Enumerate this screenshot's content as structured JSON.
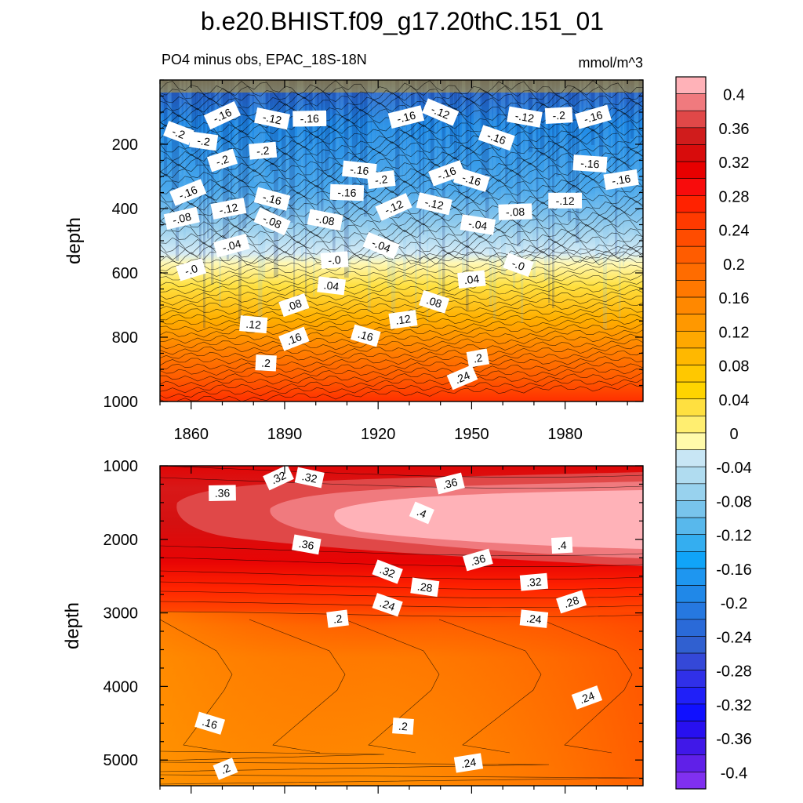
{
  "chart_data": {
    "type": "heatmap",
    "title": "b.e20.BHIST.f09_g17.20thC.151_01",
    "subtitle_left": "PO4 minus obs, EPAC_18S-18N",
    "subtitle_right": "mmol/m^3",
    "xlabel": "",
    "ylabel": "depth",
    "x_range": [
      1850,
      2005
    ],
    "x_ticks": [
      1860,
      1890,
      1920,
      1950,
      1980
    ],
    "x_tick_labels": [
      "1860",
      "1890",
      "1920",
      "1950",
      "1980"
    ],
    "panels": [
      {
        "name": "upper",
        "ylim": [
          0,
          1000
        ],
        "y_ticks": [
          200,
          400,
          600,
          800,
          1000
        ],
        "y_tick_labels": [
          "200",
          "400",
          "600",
          "800",
          "1000"
        ],
        "contour_labels": [
          {
            "text": "-.16",
            "x": 1870,
            "y": 110
          },
          {
            "text": "-.12",
            "x": 1886,
            "y": 120
          },
          {
            "text": "-.16",
            "x": 1898,
            "y": 120
          },
          {
            "text": "-.16",
            "x": 1929,
            "y": 115
          },
          {
            "text": "-.12",
            "x": 1940,
            "y": 100
          },
          {
            "text": "-.12",
            "x": 1967,
            "y": 115
          },
          {
            "text": "-.2",
            "x": 1978,
            "y": 110
          },
          {
            "text": "-.16",
            "x": 1989,
            "y": 115
          },
          {
            "text": "-.2",
            "x": 1856,
            "y": 165
          },
          {
            "text": "-.2",
            "x": 1864,
            "y": 190
          },
          {
            "text": "-.2",
            "x": 1883,
            "y": 220
          },
          {
            "text": "-.2",
            "x": 1870,
            "y": 250
          },
          {
            "text": "-.16",
            "x": 1958,
            "y": 180
          },
          {
            "text": "-.16",
            "x": 1914,
            "y": 280
          },
          {
            "text": "-.2",
            "x": 1921,
            "y": 310
          },
          {
            "text": "-.16",
            "x": 1942,
            "y": 290
          },
          {
            "text": "-.16",
            "x": 1950,
            "y": 310
          },
          {
            "text": "-.16",
            "x": 1988,
            "y": 260
          },
          {
            "text": "-.16",
            "x": 1998,
            "y": 310
          },
          {
            "text": "-.16",
            "x": 1859,
            "y": 350
          },
          {
            "text": "-.16",
            "x": 1886,
            "y": 370
          },
          {
            "text": "-.16",
            "x": 1910,
            "y": 350
          },
          {
            "text": "-.12",
            "x": 1872,
            "y": 400
          },
          {
            "text": "-.12",
            "x": 1925,
            "y": 395
          },
          {
            "text": "-.12",
            "x": 1938,
            "y": 385
          },
          {
            "text": "-.12",
            "x": 1980,
            "y": 375
          },
          {
            "text": "-.08",
            "x": 1857,
            "y": 430
          },
          {
            "text": "-.08",
            "x": 1886,
            "y": 440
          },
          {
            "text": "-.08",
            "x": 1903,
            "y": 435
          },
          {
            "text": "-.08",
            "x": 1964,
            "y": 410
          },
          {
            "text": "-.04",
            "x": 1873,
            "y": 515
          },
          {
            "text": "-.04",
            "x": 1921,
            "y": 515
          },
          {
            "text": "-.04",
            "x": 1952,
            "y": 450
          },
          {
            "text": "-.0",
            "x": 1906,
            "y": 560
          },
          {
            "text": "-.0",
            "x": 1860,
            "y": 590
          },
          {
            "text": "-.0",
            "x": 1965,
            "y": 575
          },
          {
            "text": ".04",
            "x": 1905,
            "y": 640
          },
          {
            "text": ".04",
            "x": 1950,
            "y": 620
          },
          {
            "text": ".08",
            "x": 1893,
            "y": 700
          },
          {
            "text": ".08",
            "x": 1938,
            "y": 690
          },
          {
            "text": ".12",
            "x": 1880,
            "y": 760
          },
          {
            "text": ".12",
            "x": 1928,
            "y": 745
          },
          {
            "text": ".16",
            "x": 1893,
            "y": 805
          },
          {
            "text": ".16",
            "x": 1916,
            "y": 795
          },
          {
            "text": ".2",
            "x": 1884,
            "y": 880
          },
          {
            "text": ".2",
            "x": 1952,
            "y": 865
          },
          {
            "text": ".24",
            "x": 1947,
            "y": 925
          }
        ]
      },
      {
        "name": "lower",
        "ylim": [
          1000,
          5350
        ],
        "y_ticks": [
          1000,
          2000,
          3000,
          4000,
          5000
        ],
        "y_tick_labels": [
          "1000",
          "2000",
          "3000",
          "4000",
          "5000"
        ],
        "contour_labels": [
          {
            "text": ".32",
            "x": 1888,
            "y": 1160
          },
          {
            "text": ".32",
            "x": 1898,
            "y": 1160
          },
          {
            "text": ".36",
            "x": 1870,
            "y": 1370
          },
          {
            "text": ".36",
            "x": 1943,
            "y": 1240
          },
          {
            "text": ".4",
            "x": 1934,
            "y": 1640
          },
          {
            "text": ".36",
            "x": 1897,
            "y": 2070
          },
          {
            "text": ".4",
            "x": 1979,
            "y": 2080
          },
          {
            "text": ".36",
            "x": 1952,
            "y": 2280
          },
          {
            "text": ".32",
            "x": 1923,
            "y": 2440
          },
          {
            "text": ".28",
            "x": 1935,
            "y": 2650
          },
          {
            "text": ".32",
            "x": 1970,
            "y": 2580
          },
          {
            "text": ".28",
            "x": 1982,
            "y": 2850
          },
          {
            "text": ".24",
            "x": 1923,
            "y": 2890
          },
          {
            "text": ".24",
            "x": 1970,
            "y": 3080
          },
          {
            "text": ".2",
            "x": 1907,
            "y": 3080
          },
          {
            "text": ".24",
            "x": 1987,
            "y": 4150
          },
          {
            "text": ".16",
            "x": 1866,
            "y": 4500
          },
          {
            "text": ".2",
            "x": 1928,
            "y": 4540
          },
          {
            "text": ".24",
            "x": 1949,
            "y": 5040
          },
          {
            "text": ".2",
            "x": 1871,
            "y": 5120
          }
        ]
      }
    ],
    "colorbar": {
      "label_values": [
        "0.4",
        "0.36",
        "0.32",
        "0.28",
        "0.24",
        "0.2",
        "0.16",
        "0.12",
        "0.08",
        "0.04",
        "0",
        "-0.04",
        "-0.08",
        "-0.12",
        "-0.16",
        "-0.2",
        "-0.24",
        "-0.28",
        "-0.32",
        "-0.36",
        "-0.4"
      ],
      "levels": [
        0.42,
        0.4,
        0.38,
        0.36,
        0.34,
        0.32,
        0.3,
        0.28,
        0.26,
        0.24,
        0.22,
        0.2,
        0.18,
        0.16,
        0.14,
        0.12,
        0.1,
        0.08,
        0.06,
        0.04,
        0.02,
        0.0,
        -0.02,
        -0.04,
        -0.06,
        -0.08,
        -0.1,
        -0.12,
        -0.14,
        -0.16,
        -0.18,
        -0.2,
        -0.22,
        -0.24,
        -0.26,
        -0.28,
        -0.3,
        -0.32,
        -0.34,
        -0.36,
        -0.38,
        -0.4,
        -0.42
      ],
      "colors": [
        "#ffb2b8",
        "#f07a7e",
        "#e04848",
        "#d01c1c",
        "#d80c0c",
        "#e80000",
        "#f80c0c",
        "#ff2200",
        "#ff3a00",
        "#ff4c00",
        "#ff5c00",
        "#ff6c00",
        "#ff7800",
        "#ff8800",
        "#ff9800",
        "#ffa800",
        "#ffb800",
        "#ffc800",
        "#ffd400",
        "#ffe040",
        "#ffee70",
        "#fffaaa",
        "#c8e6f5",
        "#b0dcf0",
        "#98d2ee",
        "#78c4ec",
        "#58b8ec",
        "#34aef0",
        "#10a4f8",
        "#1e96f0",
        "#2088e8",
        "#2678e0",
        "#2a6ad8",
        "#3060d0",
        "#3448d8",
        "#3030e8",
        "#2020f8",
        "#1010ff",
        "#2810f0",
        "#4018e8",
        "#6020e8",
        "#8030f0"
      ]
    }
  }
}
